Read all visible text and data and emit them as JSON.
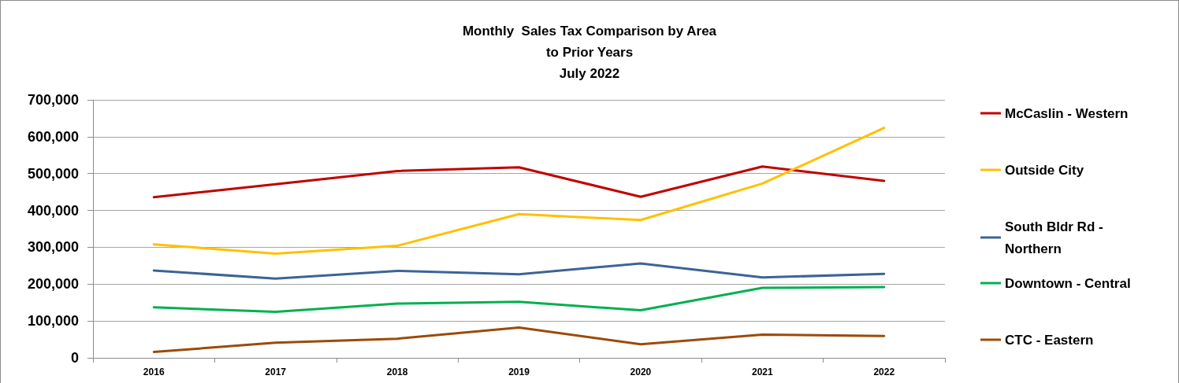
{
  "chart_data": {
    "type": "line",
    "title": "Monthly  Sales Tax Comparison by Area\nto Prior Years\nJuly 2022",
    "categories": [
      "2016",
      "2017",
      "2018",
      "2019",
      "2020",
      "2021",
      "2022"
    ],
    "series": [
      {
        "name": "McCaslin - Western",
        "color": "#c00000",
        "values": [
          436000,
          471000,
          507000,
          517000,
          437000,
          519000,
          480000
        ]
      },
      {
        "name": "Outside City",
        "color": "#ffc000",
        "values": [
          308000,
          283000,
          304000,
          390000,
          374000,
          473000,
          624000
        ]
      },
      {
        "name": "South Bldr Rd - Northern",
        "color": "#3c6497",
        "values": [
          237000,
          215000,
          236000,
          227000,
          256000,
          218000,
          228000
        ]
      },
      {
        "name": "Downtown - Central",
        "color": "#00b050",
        "values": [
          137000,
          125000,
          147000,
          152000,
          129000,
          190000,
          192000
        ]
      },
      {
        "name": "CTC - Eastern",
        "color": "#9c4a0a",
        "values": [
          16000,
          41000,
          52000,
          82000,
          37000,
          63000,
          59000
        ]
      }
    ],
    "ylim": [
      0,
      700000
    ],
    "yticks": [
      0,
      {
        "value": 100000,
        "label": "100,000"
      },
      {
        "value": 200000,
        "label": "200,000"
      },
      {
        "value": 300000,
        "label": "300,000"
      },
      {
        "value": 400000,
        "label": "400,000"
      },
      {
        "value": 500000,
        "label": "500,000"
      },
      {
        "value": 600000,
        "label": "600,000"
      },
      {
        "value": 700000,
        "label": "700,000"
      }
    ],
    "grid": "y",
    "legend": "right",
    "marker": "none",
    "line_style": "solid"
  }
}
